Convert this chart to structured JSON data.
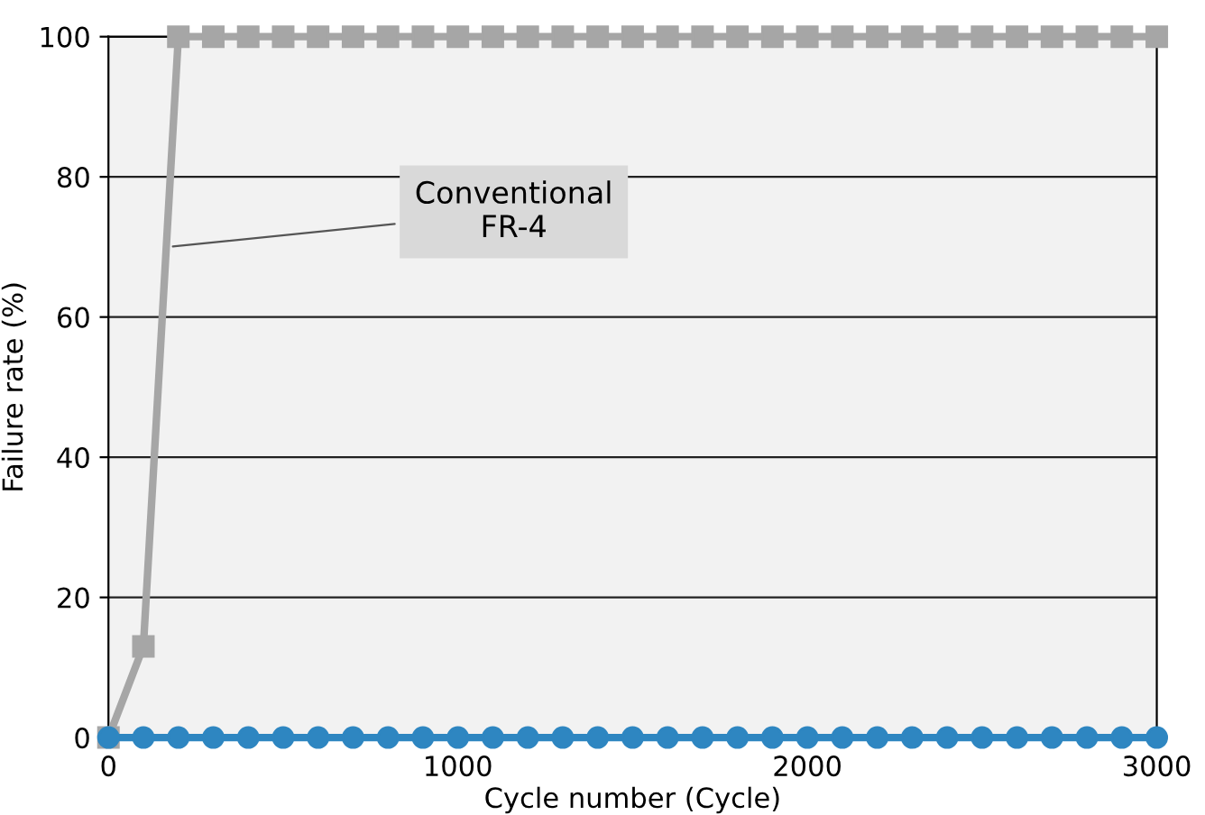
{
  "chart_data": {
    "type": "line",
    "xlabel": "Cycle number (Cycle)",
    "ylabel": "Failure rate (%)",
    "xlim": [
      0,
      3000
    ],
    "xticks": [
      0,
      1000,
      2000,
      3000
    ],
    "ylim": [
      0,
      100
    ],
    "yticks": [
      0,
      20,
      40,
      60,
      80,
      100
    ],
    "grid": "y",
    "series": [
      {
        "name": "Conventional\nFR-4",
        "color": "#a6a6a6",
        "marker": "square",
        "x": [
          0,
          100,
          200,
          300,
          400,
          500,
          600,
          700,
          800,
          900,
          1000,
          1100,
          1200,
          1300,
          1400,
          1500,
          1600,
          1700,
          1800,
          1900,
          2000,
          2100,
          2200,
          2300,
          2400,
          2500,
          2600,
          2700,
          2800,
          2900,
          3000
        ],
        "values": [
          0,
          13,
          100,
          100,
          100,
          100,
          100,
          100,
          100,
          100,
          100,
          100,
          100,
          100,
          100,
          100,
          100,
          100,
          100,
          100,
          100,
          100,
          100,
          100,
          100,
          100,
          100,
          100,
          100,
          100,
          100
        ]
      },
      {
        "color": "#2e86c1",
        "marker": "circle",
        "x": [
          0,
          100,
          200,
          300,
          400,
          500,
          600,
          700,
          800,
          900,
          1000,
          1100,
          1200,
          1300,
          1400,
          1500,
          1600,
          1700,
          1800,
          1900,
          2000,
          2100,
          2200,
          2300,
          2400,
          2500,
          2600,
          2700,
          2800,
          2900,
          3000
        ],
        "values": [
          0,
          0,
          0,
          0,
          0,
          0,
          0,
          0,
          0,
          0,
          0,
          0,
          0,
          0,
          0,
          0,
          0,
          0,
          0,
          0,
          0,
          0,
          0,
          0,
          0,
          0,
          0,
          0,
          0,
          0,
          0
        ]
      }
    ]
  }
}
